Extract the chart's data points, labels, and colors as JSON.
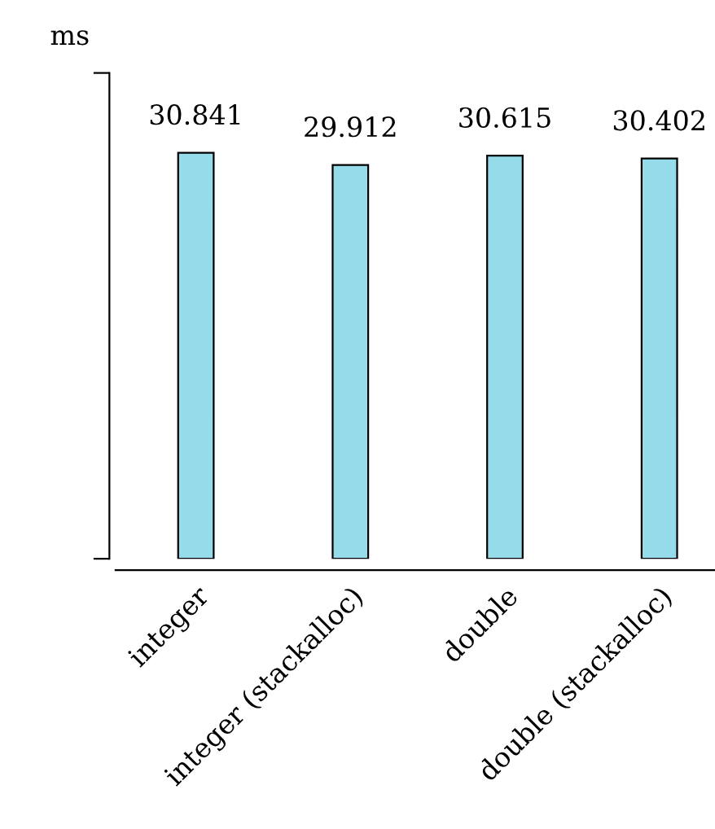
{
  "chart_data": {
    "type": "bar",
    "ylabel": "ms",
    "categories": [
      "integer",
      "integer (stackalloc)",
      "double",
      "double (stackalloc)"
    ],
    "values": [
      30.841,
      29.912,
      30.615,
      30.402
    ],
    "color": "#95dbe9",
    "ylim": [
      0,
      36.9
    ],
    "yticks": [
      {
        "value": 0,
        "label": null
      },
      {
        "value": 36.9,
        "label": null
      }
    ],
    "data_labels": true,
    "grid": false,
    "legend": false
  }
}
